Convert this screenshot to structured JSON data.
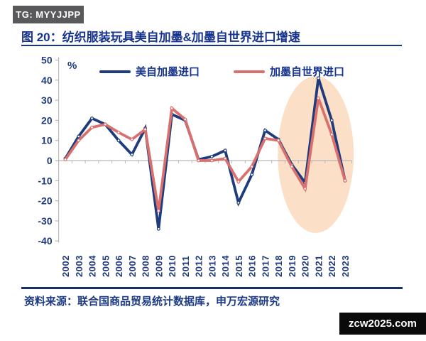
{
  "badge": {
    "text": "TG: MYYJJPP"
  },
  "title": "图 20：纺织服装玩具美自加墨&加墨自世界进口增速",
  "chart_data": {
    "type": "line",
    "title": "纺织服装玩具美自加墨&加墨自世界进口增速",
    "unit_label": "%",
    "xlabel": "",
    "ylabel": "%",
    "ylim": [
      -40,
      50
    ],
    "ytick_step": 10,
    "grid": false,
    "legend_position": "top",
    "categories": [
      "2002",
      "2003",
      "2004",
      "2005",
      "2006",
      "2007",
      "2008",
      "2009",
      "2010",
      "2011",
      "2012",
      "2013",
      "2014",
      "2015",
      "2016",
      "2017",
      "2018",
      "2019",
      "2020",
      "2021",
      "2022",
      "2023"
    ],
    "series": [
      {
        "name": "美自加墨进口",
        "color": "#1e3c7d",
        "values": [
          1,
          12,
          21,
          18,
          10,
          3,
          16,
          -34,
          23,
          20,
          0.5,
          2,
          5,
          -21,
          -7,
          15,
          10.5,
          -2,
          -11,
          41,
          20,
          -10
        ]
      },
      {
        "name": "加墨自世界进口",
        "color": "#d9706d",
        "values": [
          0.5,
          10,
          16.5,
          18,
          14,
          10.5,
          15.5,
          -25,
          26,
          20.5,
          0,
          0,
          1,
          -10.5,
          -3,
          11,
          10,
          -3,
          -14,
          31,
          13,
          -10
        ]
      }
    ],
    "highlight_ellipse": {
      "center_year": 2020.8,
      "center_value": 3,
      "rx_years": 2.85,
      "ry_values": 39,
      "color": "#fbddc3"
    },
    "axis_color": "#b9b9b9"
  },
  "footer": {
    "source": "资料来源：联合国商品贸易统计数据库，申万宏源研究"
  },
  "watermark": {
    "text": "zcw2025.com"
  }
}
